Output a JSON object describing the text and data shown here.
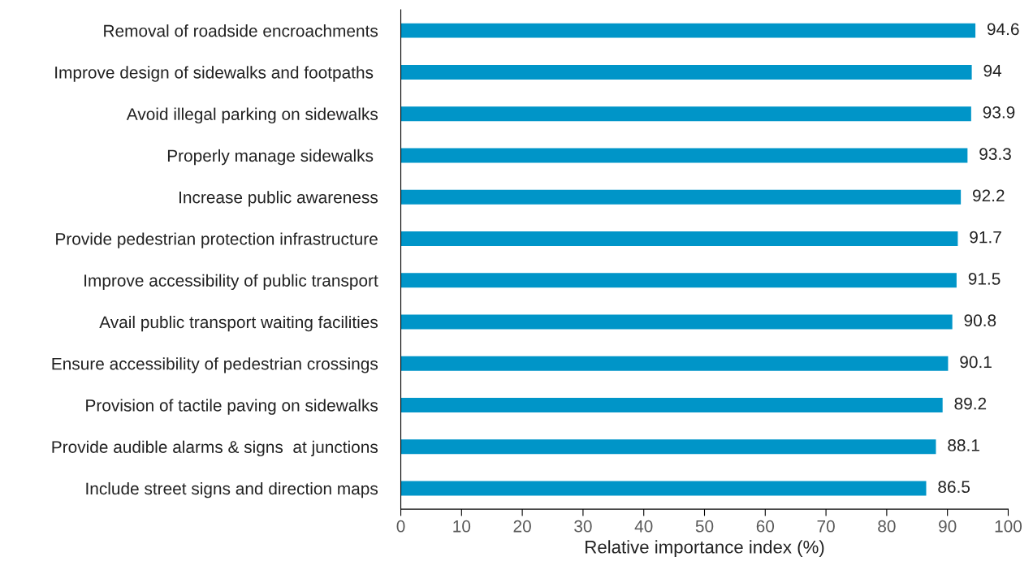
{
  "chart_data": {
    "type": "bar",
    "orientation": "horizontal",
    "xlabel": "Relative importance index (%)",
    "categories": [
      "Removal of roadside encroachments",
      "Improve design of sidewalks and footpaths ",
      "Avoid illegal parking on sidewalks",
      "Properly manage sidewalks ",
      "Increase public awareness",
      "Provide pedestrian protection infrastructure",
      "Improve accessibility of public transport",
      "Avail public transport waiting facilities",
      "Ensure accessibility of pedestrian crossings",
      "Provision of tactile paving on sidewalks",
      "Provide audible alarms & signs  at junctions",
      "Include street signs and direction maps"
    ],
    "values": [
      94.6,
      94,
      93.9,
      93.3,
      92.2,
      91.7,
      91.5,
      90.8,
      90.1,
      89.2,
      88.1,
      86.5
    ],
    "color": "#0095c8",
    "data_labels": true,
    "grid": false,
    "legend": false,
    "xlim": [
      0,
      100
    ],
    "xticks": [
      0,
      10,
      20,
      30,
      40,
      50,
      60,
      70,
      80,
      90,
      100
    ]
  }
}
